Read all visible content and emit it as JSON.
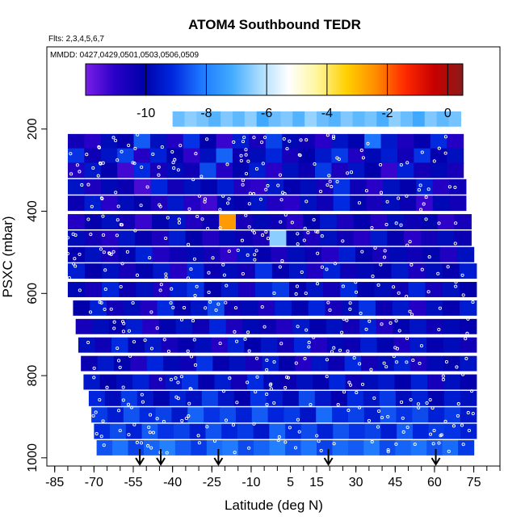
{
  "chart_data": {
    "type": "heatmap",
    "title": "ATOM4 Southbound TEDR",
    "flights_note": "Flts: 2,3,4,5,6,7",
    "dates_note": "MMDD: 0427,0429,0501,0503,0506,0509",
    "xlabel": "Latitude (deg N)",
    "ylabel": "PSXC (mbar)",
    "xlim": [
      -88,
      85
    ],
    "ylim": [
      1020,
      0
    ],
    "x_ticks": [
      -85,
      -70,
      -55,
      -40,
      -25,
      -10,
      5,
      15,
      30,
      45,
      60,
      75
    ],
    "y_ticks": [
      200,
      400,
      600,
      800,
      1000
    ],
    "colorbar": {
      "range": [
        -12,
        0.5
      ],
      "ticks": [
        -10,
        -8,
        -6,
        -4,
        -2,
        0
      ],
      "colors": [
        "#7a1fe6",
        "#2a00c8",
        "#0000aa",
        "#0028e0",
        "#1e78ff",
        "#3fa9ff",
        "#a8dcff",
        "#ffffff",
        "#fff59a",
        "#ffd000",
        "#ff8c00",
        "#ff2a00",
        "#c80000",
        "#8a1a1a"
      ]
    },
    "arrow_latitudes": [
      -52.5,
      -44.5,
      -22.5,
      19.5,
      60.5
    ],
    "profile_samples": {
      "pressure_mbar": [
        175,
        230,
        265,
        300,
        340,
        380,
        425,
        465,
        505,
        545,
        590,
        635,
        680,
        725,
        770,
        815,
        855,
        895,
        935,
        975
      ],
      "latitude_extent": [
        [
          -40,
          70
        ],
        [
          -80,
          71
        ],
        [
          -80,
          71
        ],
        [
          -80,
          71
        ],
        [
          -80,
          72
        ],
        [
          -80,
          72
        ],
        [
          -80,
          74
        ],
        [
          -80,
          74
        ],
        [
          -80,
          75
        ],
        [
          -80,
          76
        ],
        [
          -80,
          76
        ],
        [
          -78,
          76
        ],
        [
          -77,
          76
        ],
        [
          -76,
          76
        ],
        [
          -75,
          76
        ],
        [
          -74,
          76
        ],
        [
          -72,
          76
        ],
        [
          -71,
          76
        ],
        [
          -70,
          76
        ],
        [
          -69,
          75
        ]
      ],
      "log10_tedr": [
        [
          -6.8,
          -6.5,
          -6.7,
          -7.0,
          -6.6,
          -6.9,
          -6.5,
          -7.2,
          -6.8,
          -6.6,
          -7.0,
          -6.4,
          -6.8,
          -7.0,
          -6.6,
          -6.9,
          -6.7,
          -7.1,
          -6.5,
          -6.8,
          -7.2,
          -6.6,
          -6.9,
          -6.7
        ],
        [
          -10.5,
          -11.0,
          -9.8,
          -10.2,
          -8.5,
          -9.7,
          -10.8,
          -9.0,
          -10.1,
          -11.2,
          -9.4,
          -10.6,
          -8.8,
          -9.9,
          -10.4,
          -11.0,
          -9.6,
          -10.0,
          -8.2,
          -9.5,
          -10.7,
          -10.2,
          -9.1,
          -10.9
        ],
        [
          -9.0,
          -10.4,
          -9.6,
          -8.8,
          -10.9,
          -9.3,
          -10.0,
          -11.1,
          -9.7,
          -8.4,
          -10.3,
          -9.8,
          -9.2,
          -10.6,
          -10.1,
          -9.5,
          -8.9,
          -10.8,
          -9.9,
          -9.4,
          -10.5,
          -9.0,
          -10.2,
          -9.7
        ],
        [
          -10.8,
          -9.5,
          -10.2,
          -11.3,
          -9.1,
          -10.6,
          -9.8,
          -10.4,
          -8.7,
          -10.9,
          -10.0,
          -9.4,
          -11.0,
          -9.7,
          -10.3,
          -8.9,
          -10.7,
          -9.6,
          -10.1,
          -11.2,
          -9.3,
          -10.5,
          -9.9,
          -10.6
        ],
        [
          -9.6,
          -10.7,
          -9.9,
          -10.3,
          -11.4,
          -9.2,
          -10.5,
          -9.7,
          -10.0,
          -9.4,
          -10.8,
          -11.1,
          -9.5,
          -10.2,
          -9.8,
          -10.6,
          -9.0,
          -10.4,
          -11.0,
          -9.7,
          -10.1,
          -9.3,
          -10.9,
          -10.4
        ],
        [
          -10.3,
          -9.4,
          -11.0,
          -9.8,
          -10.1,
          -10.7,
          -9.5,
          -10.9,
          -11.3,
          -9.9,
          -10.2,
          -9.6,
          -10.8,
          -11.0,
          -9.7,
          -10.4,
          -9.1,
          -10.0,
          -10.6,
          -9.8,
          -10.3,
          -11.2,
          -9.9,
          -10.5
        ],
        [
          -10.9,
          -10.2,
          -9.7,
          -10.5,
          -11.2,
          -10.0,
          -9.6,
          -10.8,
          -10.3,
          -2.6,
          -10.6,
          -9.9,
          -10.4,
          -11.0,
          -10.1,
          -9.5,
          -10.7,
          -10.2,
          -10.9,
          -9.8,
          -10.4,
          -10.0,
          -11.1,
          -10.6
        ],
        [
          -9.8,
          -10.5,
          -10.9,
          -9.6,
          -10.2,
          -10.7,
          -9.4,
          -10.1,
          -10.8,
          -9.9,
          -10.3,
          -10.6,
          -6.5,
          -10.0,
          -10.7,
          -9.7,
          -10.4,
          -10.9,
          -9.5,
          -10.2,
          -11.0,
          -10.5,
          -9.8,
          -10.3
        ],
        [
          -10.2,
          -9.7,
          -10.6,
          -10.0,
          -9.3,
          -10.8,
          -10.4,
          -9.9,
          -10.5,
          -11.1,
          -9.6,
          -10.2,
          -10.7,
          -9.8,
          -10.3,
          -10.9,
          -9.4,
          -10.1,
          -10.6,
          -9.9,
          -10.4,
          -10.0,
          -10.8,
          -9.7
        ],
        [
          -9.4,
          -10.1,
          -9.7,
          -10.6,
          -10.0,
          -9.5,
          -10.9,
          -9.2,
          -10.3,
          -9.8,
          -10.5,
          -9.0,
          -10.2,
          -9.6,
          -10.8,
          -9.3,
          -10.4,
          -9.9,
          -10.1,
          -9.5,
          -10.7,
          -9.8,
          -10.2,
          -9.4
        ],
        [
          -9.9,
          -10.6,
          -9.2,
          -10.3,
          -9.7,
          -10.8,
          -9.4,
          -9.0,
          -10.1,
          -9.5,
          -10.7,
          -9.3,
          -8.9,
          -10.2,
          -9.6,
          -10.5,
          -9.1,
          -10.0,
          -9.8,
          -10.4,
          -9.2,
          -10.6,
          -9.7,
          -10.1
        ],
        [
          -10.1,
          -9.3,
          -10.5,
          -9.8,
          -10.8,
          -9.1,
          -10.2,
          -9.6,
          -8.7,
          -10.4,
          -9.9,
          -10.7,
          -9.4,
          -10.0,
          -9.2,
          -10.6,
          -9.8,
          -9.0,
          -10.3,
          -9.5,
          -10.9,
          -9.7,
          -10.2,
          -9.4
        ],
        [
          -10.6,
          -9.8,
          -10.2,
          -9.4,
          -10.9,
          -10.0,
          -9.6,
          -10.4,
          -9.2,
          -10.7,
          -9.9,
          -10.3,
          -10.8,
          -9.5,
          -10.1,
          -9.7,
          -10.5,
          -9.3,
          -10.8,
          -10.0,
          -9.6,
          -10.4,
          -9.9,
          -10.2
        ],
        [
          -9.7,
          -10.4,
          -9.1,
          -10.0,
          -9.5,
          -10.6,
          -10.2,
          -9.8,
          -10.9,
          -9.3,
          -10.1,
          -9.6,
          -10.5,
          -9.2,
          -10.8,
          -9.9,
          -10.3,
          -9.4,
          -10.0,
          -10.7,
          -9.5,
          -10.2,
          -9.8,
          -10.5
        ],
        [
          -10.3,
          -9.5,
          -10.0,
          -10.8,
          -9.2,
          -9.9,
          -10.4,
          -9.0,
          -10.2,
          -9.7,
          -10.6,
          -9.4,
          -10.1,
          -10.9,
          -9.6,
          -10.3,
          -9.1,
          -10.5,
          -9.8,
          -9.3,
          -10.7,
          -9.9,
          -10.0,
          -9.6
        ],
        [
          -9.5,
          -10.1,
          -9.8,
          -9.3,
          -10.6,
          -9.6,
          -9.0,
          -10.2,
          -9.4,
          -10.5,
          -9.1,
          -9.9,
          -10.3,
          -9.7,
          -10.0,
          -9.2,
          -10.4,
          -9.8,
          -9.5,
          -10.1,
          -9.3,
          -10.6,
          -9.7,
          -10.2
        ],
        [
          -9.2,
          -9.8,
          -8.9,
          -9.5,
          -10.0,
          -9.3,
          -9.7,
          -8.8,
          -9.6,
          -10.1,
          -9.0,
          -9.4,
          -9.9,
          -8.7,
          -9.5,
          -10.2,
          -9.1,
          -9.6,
          -8.9,
          -9.8,
          -9.3,
          -10.0,
          -9.4,
          -9.7
        ],
        [
          -8.9,
          -9.4,
          -8.6,
          -9.1,
          -8.8,
          -9.5,
          -8.4,
          -9.0,
          -8.7,
          -9.3,
          -8.5,
          -9.2,
          -8.9,
          -9.6,
          -8.3,
          -9.1,
          -8.8,
          -9.4,
          -8.6,
          -9.0,
          -8.7,
          -9.3,
          -8.9,
          -9.5
        ],
        [
          -9.1,
          -8.7,
          -9.3,
          -8.5,
          -9.0,
          -8.8,
          -9.4,
          -8.6,
          -9.2,
          -8.9,
          -9.5,
          -8.4,
          -9.1,
          -8.7,
          -9.3,
          -8.6,
          -9.0,
          -8.8,
          -9.4,
          -8.5,
          -9.2,
          -8.9,
          -9.0,
          -9.3
        ],
        [
          -8.6,
          -8.2,
          -8.8,
          -8.4,
          -8.0,
          -8.5,
          -8.9,
          -8.3,
          -8.1,
          -8.7,
          -8.4,
          -8.0,
          -8.6,
          -8.2,
          -8.8,
          -8.3,
          -8.5,
          -8.1,
          -8.7,
          -8.4,
          -8.2,
          -8.6,
          -8.3,
          -8.9
        ]
      ]
    }
  }
}
